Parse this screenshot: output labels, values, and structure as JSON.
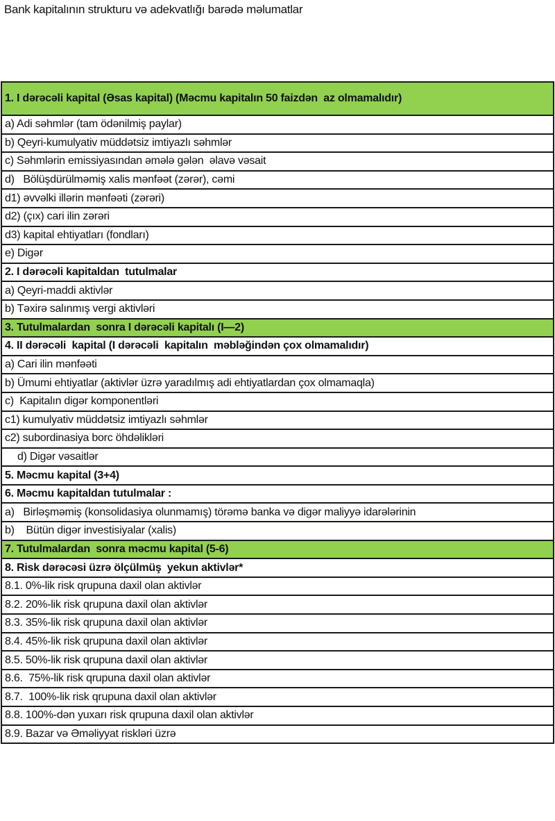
{
  "title": "Bank kapitalının strukturu və adekvatlığı barədə məlumatlar",
  "rows": [
    {
      "label": "1. I dərəcəli kapital (Əsas kapital) (Məcmu kapitalın 50 faizdən  az olmamalıdır)",
      "style": "head green bold"
    },
    {
      "label": "a) Adi səhmlər (tam ödənilmiş paylar)",
      "style": ""
    },
    {
      "label": "b) Qeyri-kumulyativ müddətsiz imtiyazlı səhmlər",
      "style": ""
    },
    {
      "label": "c) Səhmlərin emissiyasından əmələ gələn  əlavə vəsait",
      "style": ""
    },
    {
      "label": "d)   Bölüşdürülməmiş xalis mənfəət (zərər), cəmi",
      "style": ""
    },
    {
      "label": "d1) əvvəlki illərin mənfəəti (zərəri)",
      "style": ""
    },
    {
      "label": "d2) (çıx) cari ilin zərəri",
      "style": ""
    },
    {
      "label": "d3) kapital ehtiyatları (fondları)",
      "style": ""
    },
    {
      "label": "e) Digər",
      "style": ""
    },
    {
      "label": "2. I dərəcəli kapitaldan  tutulmalar",
      "style": "bold"
    },
    {
      "label": "a) Qeyri-maddi aktivlər",
      "style": ""
    },
    {
      "label": "b) Təxirə salınmış vergi aktivləri",
      "style": ""
    },
    {
      "label": "3. Tutulmalardan  sonra I dərəcəli kapitalı (I—2)",
      "style": "green bold"
    },
    {
      "label": "4. II dərəcəli  kapital (I dərəcəli  kapitalın  məbləğindən çox olmamalıdır)",
      "style": "bold"
    },
    {
      "label": "a) Cari ilin mənfəəti",
      "style": ""
    },
    {
      "label": "b) Ümumi ehtiyatlar (aktivlər üzrə yaradılmış adi ehtiyatlardan çox olmamaqla)",
      "style": ""
    },
    {
      "label": "c)  Kapitalın digər komponentləri",
      "style": ""
    },
    {
      "label": "c1) kumulyativ müddətsiz imtiyazlı səhmlər",
      "style": ""
    },
    {
      "label": "c2) subordinasiya borc öhdəlikləri",
      "style": ""
    },
    {
      "label": "d) Digər vəsaitlər",
      "style": "indent"
    },
    {
      "label": "5. Məcmu kapital (3+4)",
      "style": "bold"
    },
    {
      "label": "6. Məcmu kapitaldan tutulmalar :",
      "style": "bold"
    },
    {
      "label": "a)   Birləşməmiş (konsolidasiya olunmamış) törəmə banka və digər maliyyə idarələrinin",
      "style": ""
    },
    {
      "label": "b)    Bütün digər investisiyalar (xalis)",
      "style": ""
    },
    {
      "label": "7. Tutulmalardan  sonra məcmu kapital (5-6)",
      "style": "green bold"
    },
    {
      "label": "8. Risk dərəcəsi üzrə ölçülmüş  yekun aktivlər*",
      "style": "bold"
    },
    {
      "label": "8.1. 0%-lik risk qrupuna daxil olan aktivlər",
      "style": ""
    },
    {
      "label": "8.2. 20%-lik risk qrupuna daxil olan aktivlər",
      "style": ""
    },
    {
      "label": "8.3. 35%-lik risk qrupuna daxil olan aktivlər",
      "style": ""
    },
    {
      "label": "8.4. 45%-lik risk qrupuna daxil olan aktivlər",
      "style": ""
    },
    {
      "label": "8.5. 50%-lik risk qrupuna daxil olan aktivlər",
      "style": ""
    },
    {
      "label": "8.6.  75%-lik risk qrupuna daxil olan aktivlər",
      "style": ""
    },
    {
      "label": "8.7.  100%-lik risk qrupuna daxil olan aktivlər",
      "style": ""
    },
    {
      "label": "8.8. 100%-dən yuxarı risk qrupuna daxil olan aktivlər",
      "style": ""
    },
    {
      "label": "8.9. Bazar və Əməliyyat riskləri üzrə",
      "style": ""
    }
  ],
  "colors": {
    "highlight": "#92d050",
    "border": "#1a1a1a"
  }
}
